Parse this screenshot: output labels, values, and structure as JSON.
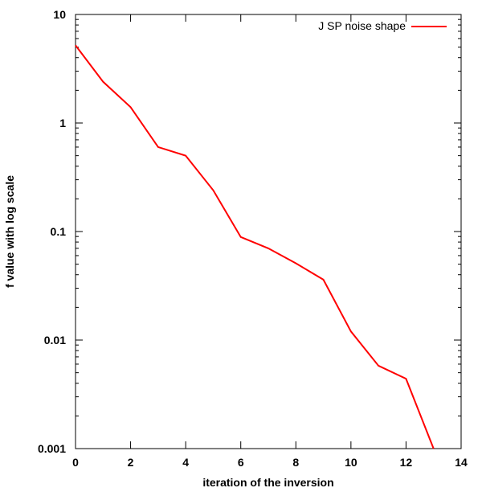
{
  "chart_data": {
    "type": "line",
    "title": "",
    "xlabel": "iteration of the inversion",
    "ylabel": "f value with log scale",
    "xlim": [
      0,
      14
    ],
    "ylim": [
      0.001,
      10
    ],
    "yscale": "log",
    "grid": false,
    "legend_position": "top-right",
    "x_ticks": [
      0,
      2,
      4,
      6,
      8,
      10,
      12,
      14
    ],
    "x_tick_labels": [
      "0",
      "2",
      "4",
      "6",
      "8",
      "10",
      "12",
      "14"
    ],
    "y_ticks": [
      0.001,
      0.01,
      0.1,
      1,
      10
    ],
    "y_tick_labels": [
      "0.001",
      "0.01",
      "0.1",
      "1",
      "10"
    ],
    "series": [
      {
        "name": "J SP noise shape",
        "color": "#ff0000",
        "x": [
          0,
          1,
          2,
          3,
          4,
          5,
          6,
          7,
          8,
          9,
          10,
          11,
          12,
          13
        ],
        "y": [
          5.2,
          2.4,
          1.4,
          0.6,
          0.5,
          0.24,
          0.089,
          0.07,
          0.051,
          0.036,
          0.012,
          0.0058,
          0.0044,
          0.001
        ]
      }
    ]
  }
}
